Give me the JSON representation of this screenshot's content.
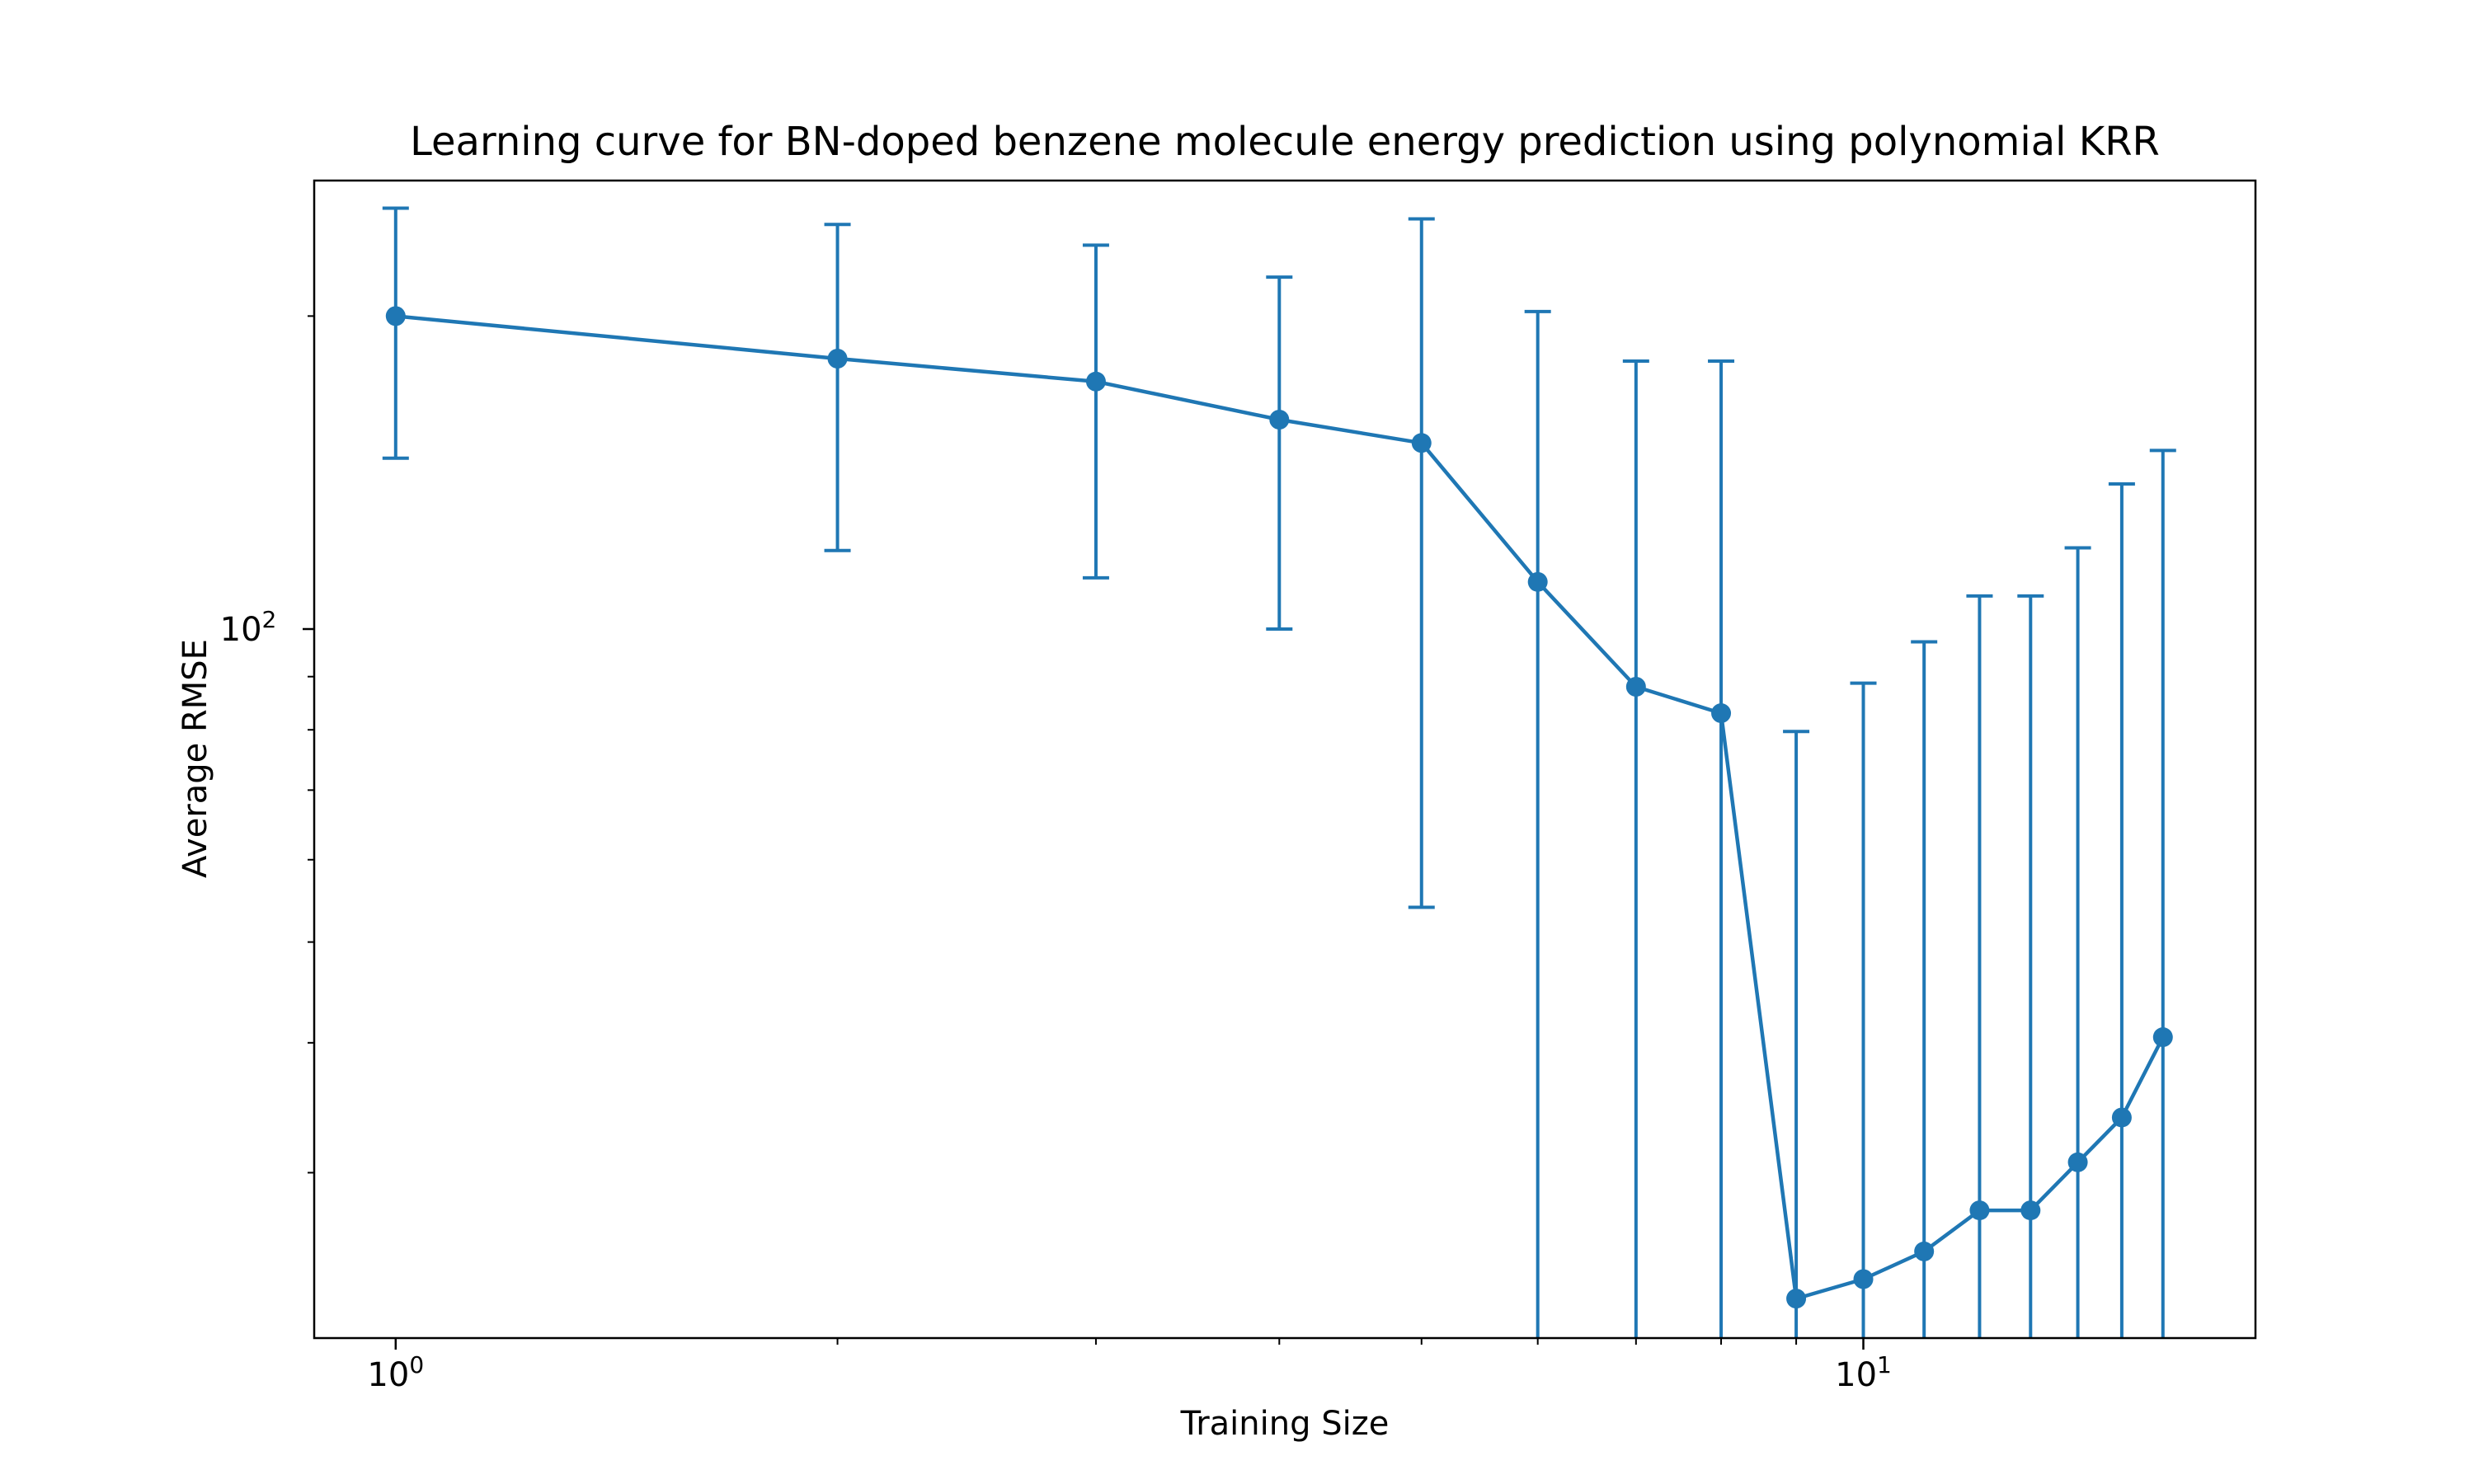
{
  "chart_data": {
    "type": "line",
    "title": "Learning curve for BN-doped benzene molecule energy prediction using polynomial KRR",
    "xlabel": "Training Size",
    "ylabel": "Average RMSE",
    "xscale": "log",
    "yscale": "log",
    "xlim": [
      0.88,
      18.5
    ],
    "ylim": [
      20.8,
      270
    ],
    "x_ticks": [
      {
        "value": 1,
        "base": "10",
        "exp": "0"
      },
      {
        "value": 10,
        "base": "10",
        "exp": "1"
      }
    ],
    "y_ticks": [
      {
        "value": 100,
        "base": "10",
        "exp": "2"
      }
    ],
    "grid": false,
    "legend": "none",
    "series": [
      {
        "color": "#1f77b4",
        "x": [
          1,
          2,
          3,
          4,
          5,
          6,
          7,
          8,
          9,
          10,
          11,
          12,
          13,
          14,
          15,
          16
        ],
        "y": [
          200,
          182,
          173,
          159,
          151,
          111,
          88,
          83,
          22.7,
          23.7,
          25.2,
          27.6,
          27.6,
          30.7,
          33.9,
          40.5
        ],
        "yerr": [
          54,
          63,
          61,
          59,
          97,
          91,
          93,
          98,
          57,
          65,
          72,
          80,
          80,
          89,
          104,
          108
        ]
      }
    ]
  }
}
